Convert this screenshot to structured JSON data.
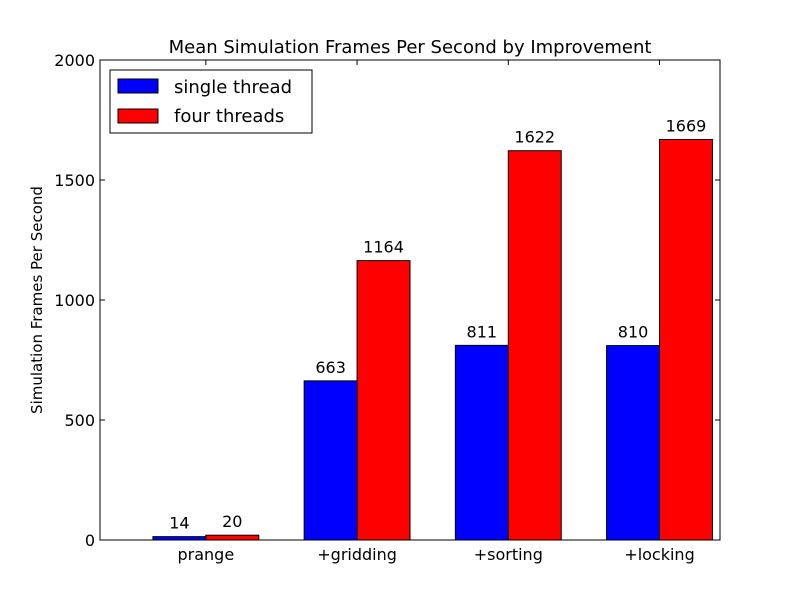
{
  "chart_data": {
    "type": "bar",
    "title": "Mean Simulation Frames Per Second by Improvement",
    "xlabel": "",
    "ylabel": "Simulation Frames Per Second",
    "categories": [
      "prange",
      "+gridding",
      "+sorting",
      "+locking"
    ],
    "series": [
      {
        "name": "single thread",
        "color": "#0000ff",
        "values": [
          14,
          663,
          811,
          810
        ]
      },
      {
        "name": "four threads",
        "color": "#ff0000",
        "values": [
          20,
          1164,
          1622,
          1669
        ]
      }
    ],
    "ylim": [
      0,
      2000
    ],
    "yticks": [
      0,
      500,
      1000,
      1500,
      2000
    ],
    "grid": false,
    "legend_position": "top-left",
    "data_labels": true
  }
}
